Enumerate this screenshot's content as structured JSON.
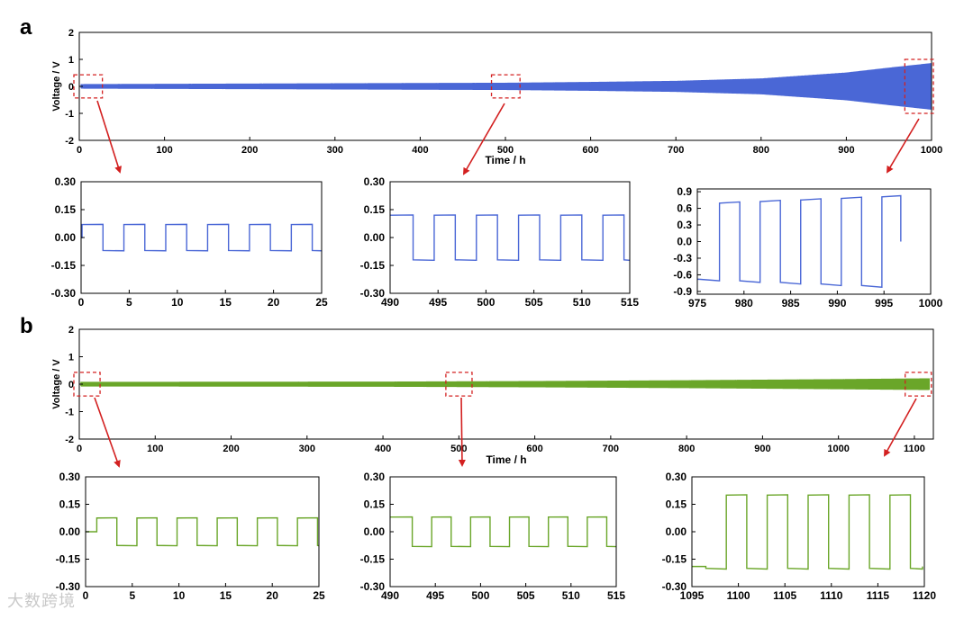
{
  "figure": {
    "watermark": "大数跨境",
    "arrow_color": "#d32020",
    "box_color": "#d32020"
  },
  "chart_data": [
    {
      "id": "a-main",
      "panel_label": "a",
      "type": "line",
      "subtype": "cycling-envelope",
      "title": "",
      "xlabel": "Time / h",
      "ylabel": "Voltage / V",
      "color": "#4a67d6",
      "xlim": [
        0,
        1000
      ],
      "ylim": [
        -2,
        2
      ],
      "xticks": [
        0,
        100,
        200,
        300,
        400,
        500,
        600,
        700,
        800,
        900,
        1000
      ],
      "yticks": [
        -2,
        -1,
        0,
        1,
        2
      ],
      "envelope": {
        "x": [
          0,
          100,
          200,
          300,
          400,
          500,
          600,
          700,
          800,
          900,
          950,
          1000
        ],
        "amplitude": [
          0.07,
          0.08,
          0.09,
          0.1,
          0.11,
          0.12,
          0.15,
          0.19,
          0.28,
          0.5,
          0.68,
          0.85
        ]
      },
      "highlight_ranges": [
        [
          0,
          25
        ],
        [
          490,
          515
        ],
        [
          975,
          1000
        ]
      ]
    },
    {
      "id": "a-zoom1",
      "panel_label": "",
      "type": "line",
      "subtype": "square-wave",
      "title": "",
      "xlabel": "",
      "ylabel": "",
      "color": "#4a67d6",
      "xlim": [
        0,
        25
      ],
      "ylim": [
        -0.3,
        0.3
      ],
      "xticks": [
        0,
        5,
        10,
        15,
        20,
        25
      ],
      "yticks": [
        0.3,
        0.15,
        0.0,
        -0.15,
        -0.3
      ],
      "ytick_labels": [
        "0.30",
        "0.15",
        "0.00",
        "-0.15",
        "-0.30"
      ],
      "period": 4.35,
      "start_x": 0.1,
      "end_x": 25,
      "amplitude": 0.07,
      "initial": 0.0
    },
    {
      "id": "a-zoom2",
      "panel_label": "",
      "type": "line",
      "subtype": "square-wave",
      "title": "",
      "xlabel": "",
      "ylabel": "",
      "color": "#4a67d6",
      "xlim": [
        490,
        515
      ],
      "ylim": [
        -0.3,
        0.3
      ],
      "xticks": [
        490,
        495,
        500,
        505,
        510,
        515
      ],
      "yticks": [
        0.3,
        0.15,
        0.0,
        -0.15,
        -0.3
      ],
      "ytick_labels": [
        "0.30",
        "0.15",
        "0.00",
        "-0.15",
        "-0.30"
      ],
      "period": 4.4,
      "start_x": 490.2,
      "end_x": 515,
      "amplitude": 0.12,
      "initial": 0.12,
      "start_low": false
    },
    {
      "id": "a-zoom3",
      "panel_label": "",
      "type": "line",
      "subtype": "square-wave",
      "title": "",
      "xlabel": "",
      "ylabel": "",
      "color": "#4a67d6",
      "xlim": [
        975,
        1000
      ],
      "ylim": [
        -0.95,
        0.95
      ],
      "xticks": [
        975,
        980,
        985,
        990,
        995,
        1000
      ],
      "yticks": [
        0.9,
        0.6,
        0.3,
        0.0,
        -0.3,
        -0.6,
        -0.9
      ],
      "ytick_labels": [
        "0.9",
        "0.6",
        "0.3",
        "0.0",
        "-0.3",
        "-0.6",
        "-0.9"
      ],
      "period": 4.35,
      "start_x": 975.2,
      "end_x": 996.8,
      "amplitude_start": 0.68,
      "amplitude_end": 0.82,
      "start_low": true,
      "end_value": 0.0
    },
    {
      "id": "b-main",
      "panel_label": "b",
      "type": "line",
      "subtype": "cycling-envelope",
      "title": "",
      "xlabel": "Time / h",
      "ylabel": "Voltage / V",
      "color": "#6aa629",
      "xlim": [
        0,
        1125
      ],
      "ylim": [
        -2,
        2
      ],
      "xticks": [
        0,
        100,
        200,
        300,
        400,
        500,
        600,
        700,
        800,
        900,
        1000,
        1100
      ],
      "yticks": [
        -2,
        -1,
        0,
        1,
        2
      ],
      "envelope": {
        "x": [
          0,
          200,
          400,
          600,
          800,
          1000,
          1120
        ],
        "amplitude": [
          0.07,
          0.075,
          0.08,
          0.1,
          0.13,
          0.17,
          0.2
        ]
      },
      "highlight_ranges": [
        [
          0,
          25
        ],
        [
          490,
          515
        ],
        [
          1095,
          1120
        ]
      ]
    },
    {
      "id": "b-zoom1",
      "panel_label": "",
      "type": "line",
      "subtype": "square-wave",
      "title": "",
      "xlabel": "",
      "ylabel": "",
      "color": "#6aa629",
      "xlim": [
        0,
        25
      ],
      "ylim": [
        -0.3,
        0.3
      ],
      "xticks": [
        0,
        5,
        10,
        15,
        20,
        25
      ],
      "yticks": [
        0.3,
        0.15,
        0.0,
        -0.15,
        -0.3
      ],
      "ytick_labels": [
        "0.30",
        "0.15",
        "0.00",
        "-0.15",
        "-0.30"
      ],
      "period": 4.3,
      "start_x": 1.2,
      "end_x": 25,
      "amplitude": 0.075,
      "initial": 0.0
    },
    {
      "id": "b-zoom2",
      "panel_label": "",
      "type": "line",
      "subtype": "square-wave",
      "title": "",
      "xlabel": "",
      "ylabel": "",
      "color": "#6aa629",
      "xlim": [
        490,
        515
      ],
      "ylim": [
        -0.3,
        0.3
      ],
      "xticks": [
        490,
        495,
        500,
        505,
        510,
        515
      ],
      "yticks": [
        0.3,
        0.15,
        0.0,
        -0.15,
        -0.3
      ],
      "ytick_labels": [
        "0.30",
        "0.15",
        "0.00",
        "-0.15",
        "-0.30"
      ],
      "period": 4.3,
      "start_x": 490.3,
      "end_x": 515,
      "amplitude": 0.08,
      "initial": 0.08,
      "start_low": false
    },
    {
      "id": "b-zoom3",
      "panel_label": "",
      "type": "line",
      "subtype": "square-wave",
      "title": "",
      "xlabel": "",
      "ylabel": "",
      "color": "#6aa629",
      "xlim": [
        1095,
        1120
      ],
      "ylim": [
        -0.3,
        0.3
      ],
      "xticks": [
        1095,
        1100,
        1105,
        1110,
        1115,
        1120
      ],
      "yticks": [
        0.3,
        0.15,
        0.0,
        -0.15,
        -0.3
      ],
      "ytick_labels": [
        "0.30",
        "0.15",
        "0.00",
        "-0.15",
        "-0.30"
      ],
      "period": 4.4,
      "start_x": 1096.5,
      "end_x": 1119.8,
      "amplitude": 0.2,
      "initial": -0.19,
      "start_low": true,
      "end_value": -0.19
    }
  ]
}
